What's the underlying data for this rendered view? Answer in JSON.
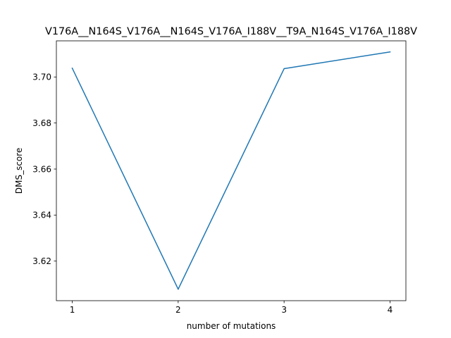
{
  "chart_data": {
    "type": "line",
    "title": "V176A__N164S_V176A__N164S_V176A_I188V__T9A_N164S_V176A_I188V",
    "xlabel": "number of mutations",
    "ylabel": "DMS_score",
    "x": [
      1,
      2,
      3,
      4
    ],
    "x_tick_labels": [
      "1",
      "2",
      "3",
      "4"
    ],
    "y_ticks": [
      3.62,
      3.64,
      3.66,
      3.68,
      3.7
    ],
    "y_tick_labels": [
      "3.62",
      "3.64",
      "3.66",
      "3.68",
      "3.70"
    ],
    "xlim": [
      0.85,
      4.15
    ],
    "ylim": [
      3.6028,
      3.7157
    ],
    "series": [
      {
        "values": [
          3.7038,
          3.6078,
          3.7036,
          3.7109
        ],
        "color": "#1f77b4"
      }
    ],
    "grid": false,
    "legend": "none"
  }
}
